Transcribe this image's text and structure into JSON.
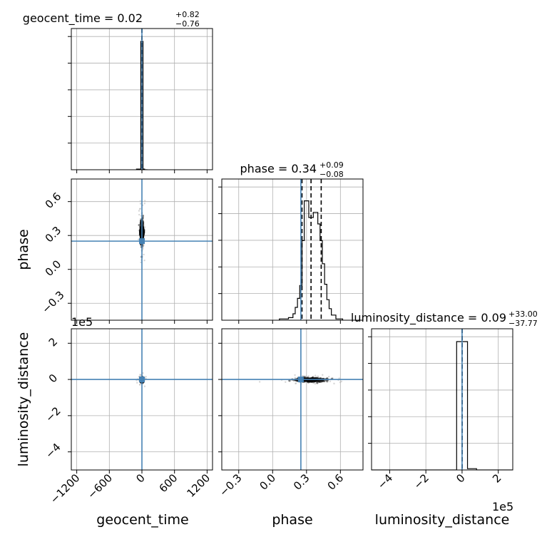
{
  "chart_data": {
    "type": "corner",
    "parameters": [
      "geocent_time",
      "phase",
      "luminosity_distance"
    ],
    "axis_labels": [
      "geocent_time",
      "phase",
      "luminosity_distance"
    ],
    "truth_color": "#4682b4",
    "hist_color": "#000000",
    "grid": true,
    "offset_labels": {
      "phase_row_luminosity_distance": "1e5",
      "luminosity_distance_xaxis": "1e5"
    },
    "ranges": {
      "geocent_time": [
        -1300,
        1300
      ],
      "phase": [
        -0.45,
        0.8
      ],
      "luminosity_distance": [
        -500000,
        280000
      ]
    },
    "ticks": {
      "geocent_time": {
        "values": [
          -1200,
          -600,
          0,
          600,
          1200
        ],
        "labels": [
          "−1200",
          "−600",
          "0",
          "600",
          "1200"
        ]
      },
      "phase": {
        "values": [
          -0.3,
          0.0,
          0.3,
          0.6
        ],
        "labels": [
          "−0.3",
          "0.0",
          "0.3",
          "0.6"
        ]
      },
      "luminosity_distance": {
        "values": [
          -400000,
          -200000,
          0,
          200000
        ],
        "labels": [
          "−4",
          "−2",
          "0",
          "2"
        ]
      }
    },
    "truths": {
      "geocent_time": 0,
      "phase": 0.25,
      "luminosity_distance": 0
    },
    "titles": [
      {
        "param": "geocent_time",
        "text": "geocent_time = 0.02",
        "plus": "+0.82",
        "minus": "−0.76"
      },
      {
        "param": "phase",
        "text": "phase = 0.34",
        "plus": "+0.09",
        "minus": "−0.08"
      },
      {
        "param": "luminosity_distance",
        "text": "luminosity_distance = 0.09",
        "plus": "+33.00",
        "minus": "−37.77"
      }
    ],
    "histograms": {
      "geocent_time": {
        "bins": [
          -100,
          -50,
          -20,
          20,
          50,
          100
        ],
        "counts": [
          0.005,
          0.005,
          1.0,
          0.005,
          0.0
        ],
        "quantiles": [
          -0.74,
          0.02,
          0.84
        ]
      },
      "phase": {
        "bins": [
          0.06,
          0.14,
          0.18,
          0.2,
          0.22,
          0.24,
          0.26,
          0.28,
          0.3,
          0.32,
          0.34,
          0.36,
          0.38,
          0.4,
          0.42,
          0.44,
          0.46,
          0.48,
          0.5,
          0.52,
          0.56,
          0.62
        ],
        "counts": [
          0.01,
          0.02,
          0.05,
          0.1,
          0.17,
          0.27,
          0.62,
          0.93,
          0.93,
          0.8,
          0.8,
          0.84,
          0.84,
          0.75,
          0.62,
          0.44,
          0.28,
          0.16,
          0.09,
          0.04,
          0.01
        ],
        "quantiles": [
          0.26,
          0.34,
          0.43
        ]
      },
      "luminosity_distance": {
        "bins": [
          -500000,
          -30000,
          0,
          30000,
          80000,
          280000
        ],
        "counts": [
          0.0,
          1.0,
          1.0,
          0.01,
          0.0
        ],
        "quantiles": [
          -37.68,
          0.09,
          33.09
        ]
      }
    },
    "samples_2d": {
      "phase_vs_geocent_time": {
        "center": [
          0,
          0.33
        ],
        "spread": [
          12,
          0.05
        ]
      },
      "luminosity_distance_vs_geocent_time": {
        "center": [
          0,
          -2000
        ],
        "spread": [
          12,
          6000
        ]
      },
      "luminosity_distance_vs_phase": {
        "center": [
          0.34,
          -2000
        ],
        "spread": [
          0.06,
          5000
        ]
      }
    }
  }
}
